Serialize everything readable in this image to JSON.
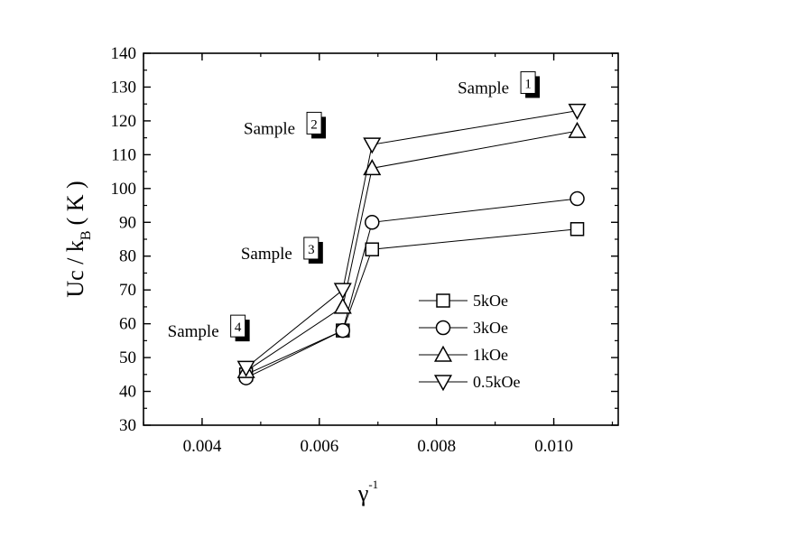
{
  "chart_data": {
    "type": "line",
    "xlabel": "γ",
    "xlabel_sup": "-1",
    "ylabel": "Uc / k",
    "ylabel_sub": "B",
    "ylabel_unit": "( K )",
    "xlim": [
      0.003,
      0.0111
    ],
    "ylim": [
      30,
      140
    ],
    "xticks": [
      0.004,
      0.006,
      0.008,
      0.01
    ],
    "xtick_labels": [
      "0.004",
      "0.006",
      "0.008",
      "0.010"
    ],
    "yticks": [
      30,
      40,
      50,
      60,
      70,
      80,
      90,
      100,
      110,
      120,
      130,
      140
    ],
    "ytick_labels": [
      "30",
      "40",
      "50",
      "60",
      "70",
      "80",
      "90",
      "100",
      "110",
      "120",
      "130",
      "140"
    ],
    "legend_position": "lower-right",
    "series": [
      {
        "name": "5kOe",
        "marker": "square",
        "x": [
          0.00475,
          0.0064,
          0.0069,
          0.0104
        ],
        "y": [
          45,
          58,
          82,
          88
        ]
      },
      {
        "name": "3kOe",
        "marker": "circle",
        "x": [
          0.00475,
          0.0064,
          0.0069,
          0.0104
        ],
        "y": [
          44,
          58,
          90,
          97
        ]
      },
      {
        "name": "1kOe",
        "marker": "triangle-up",
        "x": [
          0.00475,
          0.0064,
          0.0069,
          0.0104
        ],
        "y": [
          46,
          65,
          106,
          117
        ]
      },
      {
        "name": "0.5kOe",
        "marker": "triangle-down",
        "x": [
          0.00475,
          0.0064,
          0.0069,
          0.0104
        ],
        "y": [
          47,
          70,
          113,
          123
        ]
      }
    ],
    "annotations": [
      {
        "text": "Sample",
        "number": "1",
        "x": 0.0097,
        "y": 130
      },
      {
        "text": "Sample",
        "number": "2",
        "x": 0.00605,
        "y": 118
      },
      {
        "text": "Sample",
        "number": "3",
        "x": 0.006,
        "y": 81
      },
      {
        "text": "Sample",
        "number": "4",
        "x": 0.00475,
        "y": 58
      }
    ]
  }
}
